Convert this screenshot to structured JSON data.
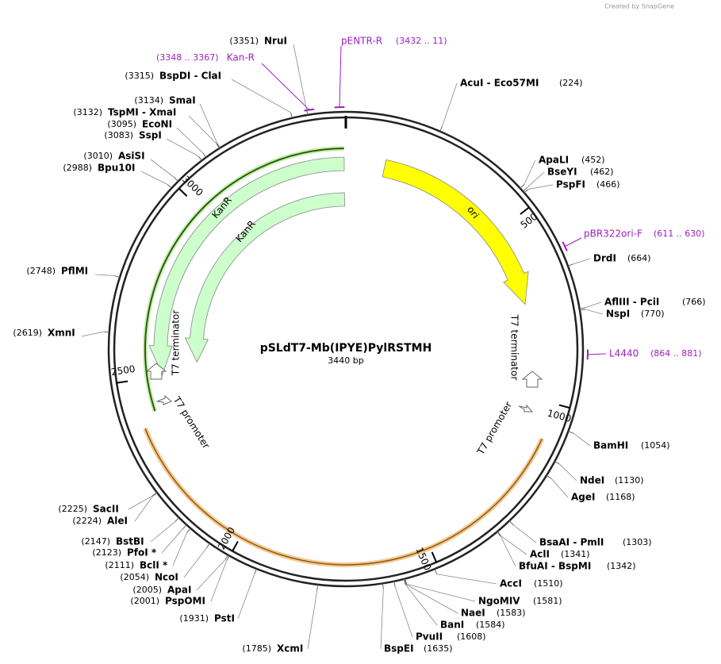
{
  "header": {
    "credit": "Created by SnapGene"
  },
  "map": {
    "name": "pSLdT7-Mb(IPYE)PylRSTMH",
    "length": "3440 bp",
    "ticks": [
      "500",
      "1000",
      "1500",
      "2000",
      "2500",
      "3000"
    ],
    "features": [
      "ori",
      "KanR",
      "KanR",
      "T7 terminator",
      "T7 terminator",
      "T7 promoter",
      "T7 promoter"
    ],
    "primers": [
      {
        "name": "pENTR-R",
        "range": "(3432 .. 11)"
      },
      {
        "name": "Kan-R",
        "range": "(3348 .. 3367)"
      },
      {
        "name": "pBR322ori-F",
        "range": "(611 .. 630)"
      },
      {
        "name": "L4440",
        "range": "(864 .. 881)"
      }
    ],
    "sites": [
      {
        "name": "NruI",
        "pos": "(3351)"
      },
      {
        "name": "BspDI  - ClaI",
        "pos": "(3315)"
      },
      {
        "name": "SmaI",
        "pos": "(3134)"
      },
      {
        "name": "TspMI  - XmaI",
        "pos": "(3132)"
      },
      {
        "name": "EcoNI",
        "pos": "(3095)"
      },
      {
        "name": "SspI",
        "pos": "(3083)"
      },
      {
        "name": "AsiSI",
        "pos": "(3010)"
      },
      {
        "name": "Bpu10I",
        "pos": "(2988)"
      },
      {
        "name": "PflMI",
        "pos": "(2748)"
      },
      {
        "name": "XmnI",
        "pos": "(2619)"
      },
      {
        "name": "SacII",
        "pos": "(2225)"
      },
      {
        "name": "AleI",
        "pos": "(2224)"
      },
      {
        "name": "BstBI",
        "pos": "(2147)"
      },
      {
        "name": "PfoI *",
        "pos": "(2123)"
      },
      {
        "name": "BclI *",
        "pos": "(2111)"
      },
      {
        "name": "NcoI",
        "pos": "(2054)"
      },
      {
        "name": "ApaI",
        "pos": "(2005)"
      },
      {
        "name": "PspOMI",
        "pos": "(2001)"
      },
      {
        "name": "PstI",
        "pos": "(1931)"
      },
      {
        "name": "XcmI",
        "pos": "(1785)"
      },
      {
        "name": "AcuI  - Eco57MI",
        "pos": "(224)"
      },
      {
        "name": "ApaLI",
        "pos": "(452)"
      },
      {
        "name": "BseYI",
        "pos": "(462)"
      },
      {
        "name": "PspFI",
        "pos": "(466)"
      },
      {
        "name": "DrdI",
        "pos": "(664)"
      },
      {
        "name": "AflIII  - PciI",
        "pos": "(766)"
      },
      {
        "name": "NspI",
        "pos": "(770)"
      },
      {
        "name": "BamHI",
        "pos": "(1054)"
      },
      {
        "name": "NdeI",
        "pos": "(1130)"
      },
      {
        "name": "AgeI",
        "pos": "(1168)"
      },
      {
        "name": "BsaAI  - PmlI",
        "pos": "(1303)"
      },
      {
        "name": "AclI",
        "pos": "(1341)"
      },
      {
        "name": "BfuAI  - BspMI",
        "pos": "(1342)"
      },
      {
        "name": "AccI",
        "pos": "(1510)"
      },
      {
        "name": "NgoMIV",
        "pos": "(1581)"
      },
      {
        "name": "NaeI",
        "pos": "(1583)"
      },
      {
        "name": "BanI",
        "pos": "(1584)"
      },
      {
        "name": "PvuII",
        "pos": "(1608)"
      },
      {
        "name": "BspEI",
        "pos": "(1635)"
      }
    ]
  }
}
